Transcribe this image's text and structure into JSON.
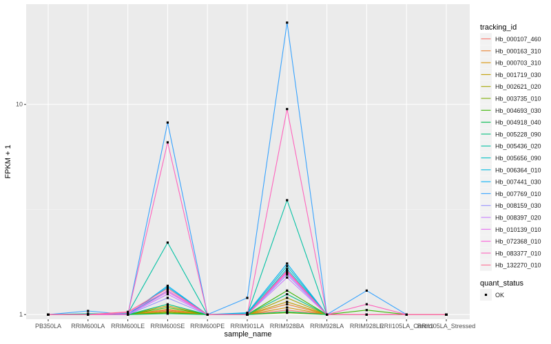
{
  "chart_data": {
    "type": "line",
    "xlabel": "sample_name",
    "ylabel": "FPKM + 1",
    "y_scale": "log10",
    "ylim": [
      0.95,
      30
    ],
    "y_ticks": [
      1,
      10
    ],
    "y_tick_labels": [
      "1",
      "10"
    ],
    "grid": true,
    "categories": [
      "PB350LA",
      "RRIM600LA",
      "RRIM600LE",
      "RRIM600SE",
      "RRIM600PE",
      "RRIM901LA",
      "RRIM928BA",
      "RRIM928LA",
      "RRIM928LE",
      "RRII105LA_Control",
      "RRII105LA_Stressed"
    ],
    "category_labels": [
      "PB350LA",
      "RRIM600LA",
      "RRIM600LE",
      "RRIM600SE",
      "RRIM600PE",
      "RRIM901LA",
      "RRIM928BA",
      "RRIM928LA",
      "RRIM928LE",
      "RRII105LA_Control",
      "RRII105LA_Stressed"
    ],
    "legend": {
      "title": "tracking_id",
      "position": "right",
      "entries": [
        "Hb_000107_460",
        "Hb_000163_310",
        "Hb_000703_310",
        "Hb_001719_030",
        "Hb_002621_020",
        "Hb_003735_010",
        "Hb_004693_030",
        "Hb_004918_040",
        "Hb_005228_090",
        "Hb_005436_020",
        "Hb_005656_090",
        "Hb_006364_010",
        "Hb_007441_030",
        "Hb_007769_010",
        "Hb_008159_030",
        "Hb_008397_020",
        "Hb_010139_010",
        "Hb_072368_010",
        "Hb_083377_010",
        "Hb_132270_010"
      ]
    },
    "shape_legend": {
      "title": "quant_status",
      "entries": [
        "OK"
      ]
    },
    "series": [
      {
        "name": "Hb_000107_460",
        "color": "#F8766D",
        "values": [
          1,
          1,
          1,
          1.05,
          1,
          1,
          1.05,
          1,
          1,
          1,
          1
        ]
      },
      {
        "name": "Hb_000163_310",
        "color": "#EA8331",
        "values": [
          1,
          1,
          1,
          1.04,
          1,
          1,
          1.12,
          1,
          1,
          1,
          1
        ]
      },
      {
        "name": "Hb_000703_310",
        "color": "#D89000",
        "values": [
          1,
          1,
          1,
          1.06,
          1,
          1,
          1.08,
          1,
          1,
          1,
          1
        ]
      },
      {
        "name": "Hb_001719_030",
        "color": "#C09B00",
        "values": [
          1,
          1,
          1,
          1.1,
          1,
          1,
          1.15,
          1,
          1,
          1,
          1
        ]
      },
      {
        "name": "Hb_002621_020",
        "color": "#A3A500",
        "values": [
          1,
          1,
          1,
          1.03,
          1,
          1,
          1.2,
          1,
          1,
          1,
          1
        ]
      },
      {
        "name": "Hb_003735_010",
        "color": "#7CAE00",
        "values": [
          1,
          1,
          1,
          1.02,
          1,
          1,
          1.02,
          1,
          1,
          1,
          1
        ]
      },
      {
        "name": "Hb_004693_030",
        "color": "#39B600",
        "values": [
          1,
          1,
          1,
          1.08,
          1,
          1,
          1.3,
          1,
          1.05,
          1,
          1
        ]
      },
      {
        "name": "Hb_004918_040",
        "color": "#00BB4E",
        "values": [
          1,
          1,
          1,
          1.01,
          1,
          1,
          1.03,
          1,
          1,
          1,
          1
        ]
      },
      {
        "name": "Hb_005228_090",
        "color": "#00BF7D",
        "values": [
          1,
          1,
          1,
          1.12,
          1,
          1,
          1.25,
          1,
          1,
          1,
          1
        ]
      },
      {
        "name": "Hb_005436_020",
        "color": "#00C1A3",
        "values": [
          1,
          1.01,
          1.01,
          2.2,
          1,
          1,
          3.5,
          1,
          1,
          1,
          1
        ]
      },
      {
        "name": "Hb_005656_090",
        "color": "#00BFC4",
        "values": [
          1,
          1,
          1,
          1.3,
          1,
          1.01,
          1.7,
          1,
          1,
          1,
          1
        ]
      },
      {
        "name": "Hb_006364_010",
        "color": "#00BAE0",
        "values": [
          1,
          1,
          1,
          1.35,
          1,
          1,
          1.65,
          1,
          1,
          1,
          1
        ]
      },
      {
        "name": "Hb_007441_030",
        "color": "#00B0F6",
        "values": [
          1,
          1,
          1,
          1.37,
          1,
          1.02,
          1.75,
          1,
          1,
          1,
          1
        ]
      },
      {
        "name": "Hb_007769_010",
        "color": "#35A2FF",
        "values": [
          1,
          1.04,
          1,
          8.2,
          1,
          1.2,
          24.5,
          1,
          1.3,
          1,
          1
        ]
      },
      {
        "name": "Hb_008159_030",
        "color": "#9590FF",
        "values": [
          1,
          1,
          1,
          1.2,
          1,
          1,
          1.55,
          1,
          1,
          1,
          1
        ]
      },
      {
        "name": "Hb_008397_020",
        "color": "#C77CFF",
        "values": [
          1,
          1,
          1,
          1.25,
          1,
          1,
          1.5,
          1,
          1,
          1,
          1
        ]
      },
      {
        "name": "Hb_010139_010",
        "color": "#E76BF3",
        "values": [
          1,
          1,
          1,
          1.28,
          1,
          1,
          1.58,
          1,
          1,
          1,
          1
        ]
      },
      {
        "name": "Hb_072368_010",
        "color": "#FA62DB",
        "values": [
          1,
          1,
          1.02,
          1.3,
          1,
          1,
          1.6,
          1,
          1,
          1,
          1
        ]
      },
      {
        "name": "Hb_083377_010",
        "color": "#FF62BC",
        "values": [
          1,
          1,
          1,
          6.6,
          1,
          1,
          9.5,
          1,
          1.12,
          1,
          1
        ]
      },
      {
        "name": "Hb_132270_010",
        "color": "#FF6C91",
        "values": [
          1,
          1,
          1.03,
          1.33,
          1,
          1,
          1.62,
          1,
          1,
          1,
          1
        ]
      }
    ]
  }
}
